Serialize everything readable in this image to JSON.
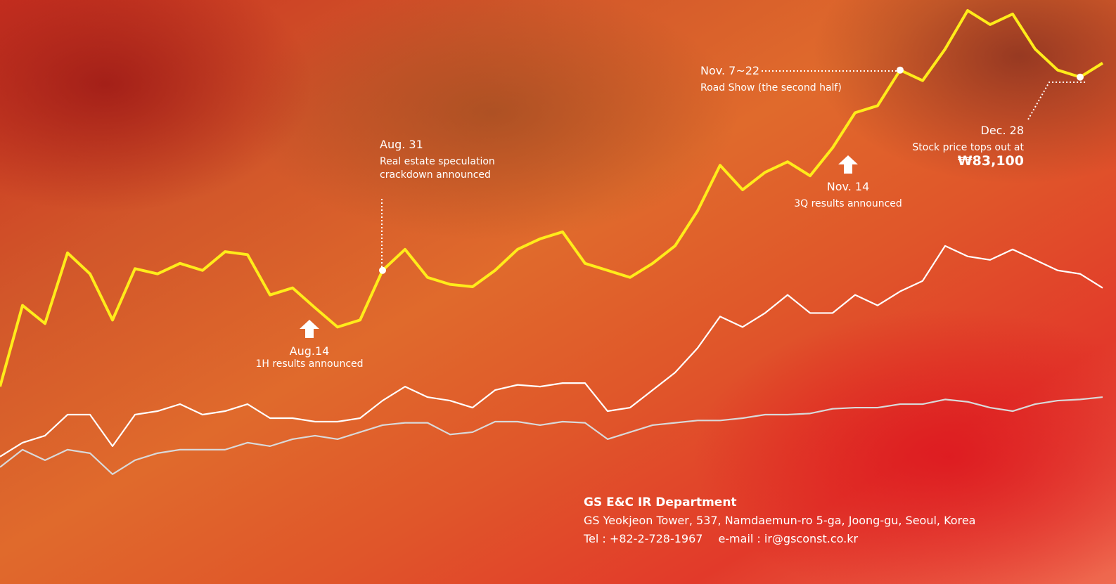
{
  "chart_data": {
    "type": "line",
    "ylim": [
      0,
      100
    ],
    "series": [
      {
        "color": "#ffec1a",
        "values": [
          33.8,
          47.7,
          44.6,
          56.7,
          53.1,
          45.2,
          54.0,
          53.1,
          54.9,
          53.7,
          56.9,
          56.4,
          49.5,
          50.7,
          47.3,
          44.0,
          45.2,
          53.7,
          57.3,
          52.5,
          51.3,
          50.9,
          53.7,
          57.3,
          59.1,
          60.3,
          54.9,
          53.7,
          52.5,
          54.9,
          57.9,
          63.9,
          71.7,
          67.5,
          70.5,
          72.3,
          69.9,
          74.7,
          80.7,
          81.9,
          88.0,
          86.2,
          91.6,
          98.2,
          95.8,
          97.6,
          91.6,
          88.0,
          86.8,
          89.2
        ]
      },
      {
        "color": "#ffffff",
        "values": [
          21.8,
          24.2,
          25.4,
          29.0,
          29.0,
          23.6,
          29.0,
          29.6,
          30.8,
          29.0,
          29.6,
          30.8,
          28.4,
          28.4,
          27.8,
          27.8,
          28.4,
          31.4,
          33.8,
          32.0,
          31.4,
          30.2,
          33.2,
          34.1,
          33.8,
          34.4,
          34.4,
          29.6,
          30.2,
          33.2,
          36.2,
          40.4,
          45.8,
          44.0,
          46.4,
          49.5,
          46.4,
          46.4,
          49.5,
          47.7,
          50.1,
          51.9,
          57.9,
          56.1,
          55.5,
          57.3,
          55.5,
          53.7,
          53.1,
          50.7
        ]
      },
      {
        "color": "#d9d9d9",
        "values": [
          20.0,
          23.0,
          21.2,
          23.0,
          22.4,
          18.8,
          21.2,
          22.4,
          23.0,
          23.0,
          23.0,
          24.2,
          23.6,
          24.8,
          25.4,
          24.8,
          26.0,
          27.2,
          27.6,
          27.6,
          25.6,
          26.0,
          27.8,
          27.8,
          27.2,
          27.8,
          27.6,
          24.8,
          26.0,
          27.2,
          27.6,
          28.0,
          28.0,
          28.4,
          29.0,
          29.0,
          29.2,
          30.0,
          30.2,
          30.2,
          30.8,
          30.8,
          31.6,
          31.2,
          30.2,
          29.6,
          30.8,
          31.4,
          31.6,
          32.0
        ]
      }
    ],
    "annotations": [
      {
        "date": "Aug.14",
        "lines": [
          "1H results announced"
        ]
      },
      {
        "date": "Aug. 31",
        "lines": [
          "Real estate speculation",
          "crackdown announced"
        ]
      },
      {
        "date": "Nov. 7~22",
        "lines": [
          "Road Show (the second half)"
        ]
      },
      {
        "date": "Nov. 14",
        "lines": [
          "3Q results announced"
        ]
      },
      {
        "date": "Dec. 28",
        "lines": [
          "Stock price tops out at"
        ],
        "amount": "₩83,100"
      }
    ]
  },
  "footer": {
    "title": "GS E&C IR Department",
    "address": "GS Yeokjeon Tower, 537, Namdaemun-ro 5-ga, Joong-gu, Seoul, Korea",
    "tel": "Tel : +82-2-728-1967",
    "email": "e-mail : ir@gsconst.co.kr"
  }
}
